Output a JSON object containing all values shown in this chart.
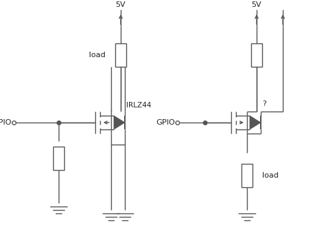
{
  "bg_color": "#ffffff",
  "line_color": "#555555",
  "text_color": "#222222",
  "fig_width": 4.74,
  "fig_height": 3.37,
  "dpi": 100,
  "circuit1": {
    "label_gpio": "GPIO",
    "label_load": "load",
    "label_part": "IRLZ44",
    "label_vcc": "5V"
  },
  "circuit2": {
    "label_gpio": "GPIO",
    "label_load": "load",
    "label_part": "?",
    "label_vcc": "5V"
  }
}
